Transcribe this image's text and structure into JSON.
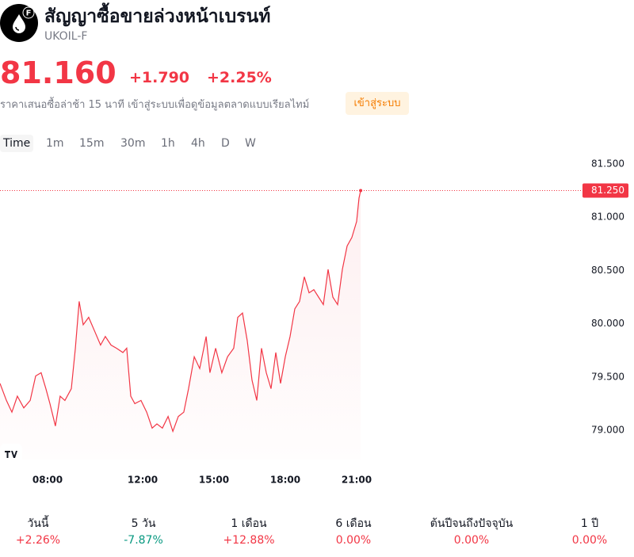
{
  "header": {
    "icon_badge": "F",
    "title": "สัญญาซื้อขายล่วงหน้าเบรนท์",
    "symbol": "UKOIL-F",
    "price": "81.160",
    "change": "+1.790",
    "change_percent": "+2.25%",
    "delay_note": "ราคาเสนอซื้อล่าช้า 15 นาที เข้าสู่ระบบเพื่อดูข้อมูลตลาดแบบเรียลไทม์",
    "login_button": "เข้าสู่ระบบ"
  },
  "timeframes": [
    "Time",
    "1m",
    "15m",
    "30m",
    "1h",
    "4h",
    "D",
    "W"
  ],
  "chart_data": {
    "type": "line",
    "color": "#f23645",
    "x": [
      6,
      6.27,
      6.5,
      6.73,
      7,
      7.27,
      7.5,
      7.73,
      7.93,
      8.1,
      8.33,
      8.53,
      8.73,
      9,
      9.17,
      9.33,
      9.5,
      9.73,
      10,
      10.23,
      10.43,
      10.67,
      10.9,
      11.17,
      11.33,
      11.5,
      11.67,
      11.93,
      12.17,
      12.4,
      12.6,
      12.83,
      13.07,
      13.27,
      13.5,
      13.73,
      13.93,
      14.17,
      14.4,
      14.67,
      14.83,
      15.07,
      15.33,
      15.57,
      15.83,
      16,
      16.2,
      16.4,
      16.6,
      16.8,
      17,
      17.2,
      17.4,
      17.6,
      17.8,
      18,
      18.2,
      18.4,
      18.6,
      18.8,
      19,
      19.2,
      19.4,
      19.6,
      19.8,
      20,
      20.2,
      20.4,
      20.6,
      20.8,
      21,
      21.1,
      21.17
    ],
    "values": [
      79.44,
      79.28,
      79.17,
      79.32,
      79.21,
      79.28,
      79.51,
      79.54,
      79.39,
      79.25,
      79.04,
      79.32,
      79.28,
      79.39,
      79.77,
      80.21,
      79.99,
      80.06,
      79.92,
      79.8,
      79.88,
      79.8,
      79.77,
      79.73,
      79.77,
      79.32,
      79.25,
      79.28,
      79.17,
      79.02,
      79.06,
      79.02,
      79.13,
      78.99,
      79.13,
      79.17,
      79.39,
      79.69,
      79.58,
      79.88,
      79.54,
      79.77,
      79.54,
      79.69,
      79.77,
      80.06,
      80.1,
      79.84,
      79.47,
      79.28,
      79.77,
      79.54,
      79.39,
      79.73,
      79.44,
      79.69,
      79.88,
      80.14,
      80.21,
      80.44,
      80.29,
      80.32,
      80.25,
      80.18,
      80.51,
      80.25,
      80.18,
      80.51,
      80.73,
      80.81,
      80.96,
      81.18,
      81.25
    ],
    "xlim": [
      6,
      30.5
    ],
    "xticks": [
      {
        "value": 8,
        "label": "08:00"
      },
      {
        "value": 12,
        "label": "12:00"
      },
      {
        "value": 15,
        "label": "15:00"
      },
      {
        "value": 18,
        "label": "18:00"
      },
      {
        "value": 21,
        "label": "21:00"
      }
    ],
    "ylim": [
      78.725,
      81.626
    ],
    "yticks": [
      {
        "value": 79,
        "label": "79.000"
      },
      {
        "value": 79.5,
        "label": "79.500"
      },
      {
        "value": 80,
        "label": "80.000"
      },
      {
        "value": 80.5,
        "label": "80.500"
      },
      {
        "value": 81,
        "label": "81.000"
      },
      {
        "value": 81.5,
        "label": "81.500"
      }
    ],
    "grid": false,
    "price_line": {
      "value": 81.25,
      "label": "81.250"
    }
  },
  "stats": [
    {
      "label": "วันนี้",
      "value": "+2.26%",
      "color": "#f23645"
    },
    {
      "label": "5 วัน",
      "value": "-7.87%",
      "color": "#089981"
    },
    {
      "label": "1 เดือน",
      "value": "+12.88%",
      "color": "#f23645"
    },
    {
      "label": "6 เดือน",
      "value": "0.00%",
      "color": "#f23645"
    },
    {
      "label": "ต้นปีจนถึงปัจจุบัน",
      "value": "0.00%",
      "color": "#f23645"
    },
    {
      "label": "1 ปี",
      "value": "0.00%",
      "color": "#f23645"
    }
  ]
}
